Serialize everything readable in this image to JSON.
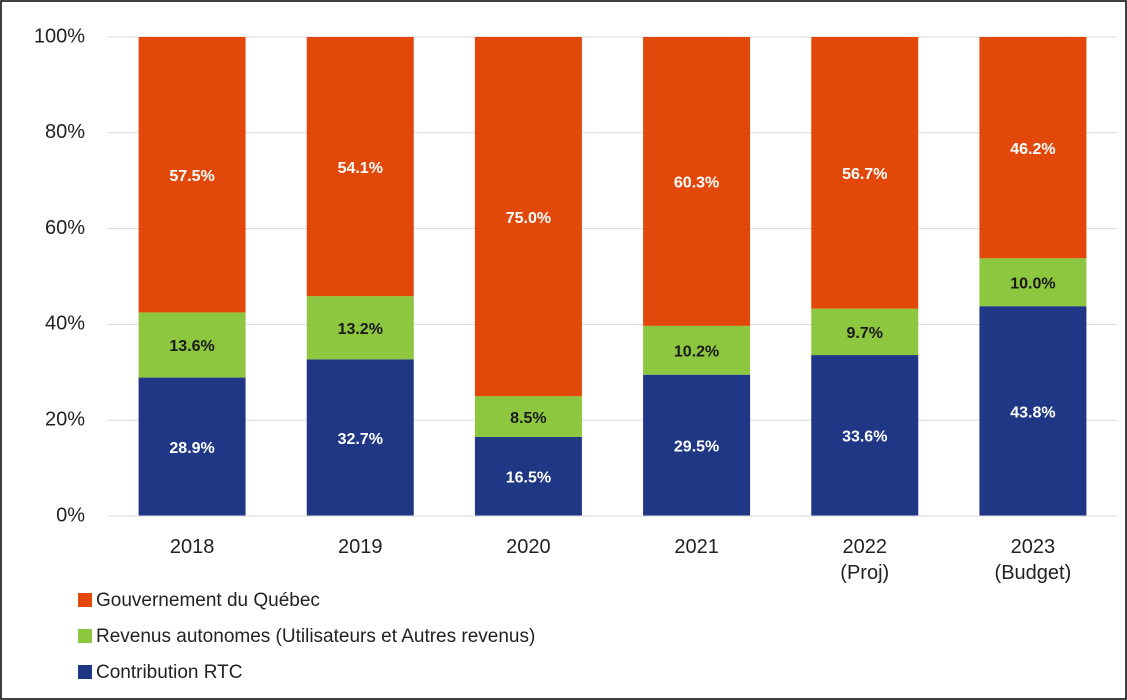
{
  "chart_data": {
    "type": "stacked_bar",
    "categories": [
      "2018",
      "2019",
      "2020",
      "2021",
      "2022\n(Proj)",
      "2023\n(Budget)"
    ],
    "series": [
      {
        "name": "Gouvernement du Québec",
        "color": "#e2480a",
        "label_color": "#ffffff",
        "values": [
          57.5,
          54.1,
          75.0,
          60.3,
          56.7,
          46.2
        ],
        "value_labels": [
          "57.5%",
          "54.1%",
          "75.0%",
          "60.3%",
          "56.7%",
          "46.2%"
        ]
      },
      {
        "name": "Revenus autonomes (Utilisateurs et Autres revenus)",
        "color": "#8dc63f",
        "label_color": "#1a1a1a",
        "values": [
          13.6,
          13.2,
          8.5,
          10.2,
          9.7,
          10.0
        ],
        "value_labels": [
          "13.6%",
          "13.2%",
          "8.5%",
          "10.2%",
          "9.7%",
          "10.0%"
        ]
      },
      {
        "name": "Contribution RTC",
        "color": "#1f3785",
        "label_color": "#ffffff",
        "values": [
          28.9,
          32.7,
          16.5,
          29.5,
          33.6,
          43.8
        ],
        "value_labels": [
          "28.9%",
          "32.7%",
          "16.5%",
          "29.5%",
          "33.6%",
          "43.8%"
        ]
      }
    ],
    "ylim": [
      0,
      100
    ],
    "yticks": [
      {
        "value": 0,
        "label": "0%"
      },
      {
        "value": 20,
        "label": "20%"
      },
      {
        "value": 40,
        "label": "40%"
      },
      {
        "value": 60,
        "label": "60%"
      },
      {
        "value": 80,
        "label": "80%"
      },
      {
        "value": 100,
        "label": "100%"
      }
    ],
    "grid": true,
    "legend": "bottom-left"
  }
}
